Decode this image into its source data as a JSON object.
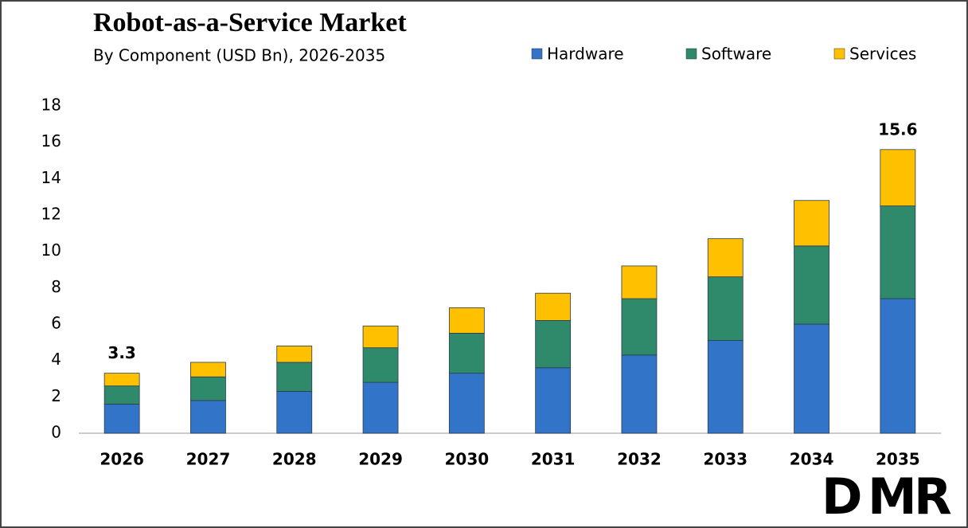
{
  "chart_data": {
    "type": "stacked_bar",
    "title": "Robot-as-a-Service Market",
    "subtitle": "By Component (USD Bn), 2026-2035",
    "categories": [
      "2026",
      "2027",
      "2028",
      "2029",
      "2030",
      "2031",
      "2032",
      "2033",
      "2034",
      "2035"
    ],
    "series": [
      {
        "name": "Hardware",
        "color": "#3274c8",
        "values": [
          1.6,
          1.8,
          2.3,
          2.8,
          3.3,
          3.6,
          4.3,
          5.1,
          6.0,
          7.4
        ]
      },
      {
        "name": "Software",
        "color": "#2f8a6c",
        "values": [
          1.0,
          1.3,
          1.6,
          1.9,
          2.2,
          2.6,
          3.1,
          3.5,
          4.3,
          5.1
        ]
      },
      {
        "name": "Services",
        "color": "#ffc000",
        "values": [
          0.7,
          0.8,
          0.9,
          1.2,
          1.4,
          1.5,
          1.8,
          2.1,
          2.5,
          3.1
        ]
      }
    ],
    "annotations": [
      {
        "x": "2026",
        "value": 3.3,
        "label": "3.3"
      },
      {
        "x": "2035",
        "value": 15.6,
        "label": "15.6"
      }
    ],
    "ylim": [
      0,
      18
    ],
    "yticks": [
      0,
      2,
      4,
      6,
      8,
      10,
      12,
      14,
      16,
      18
    ],
    "grid": false,
    "legend": "top",
    "logo": [
      "D",
      "M",
      "R"
    ]
  }
}
